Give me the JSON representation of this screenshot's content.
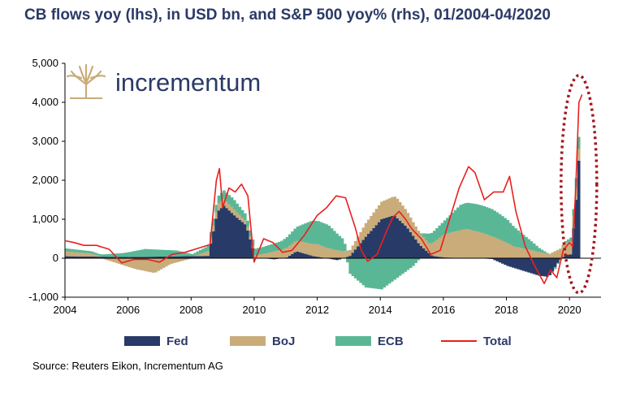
{
  "colors": {
    "fed": "#283a67",
    "boj": "#c9ac7a",
    "ecb": "#5ab796",
    "total": "#e8201f",
    "highlight": "#a3141e",
    "axis": "#000000",
    "title": "#2b3a67"
  },
  "logo": {
    "icon": "tree-logo-icon",
    "text": "incrementum"
  },
  "source": "Source: Reuters Eikon, Incrementum AG",
  "chart_data": {
    "type": "area",
    "title": "CB flows yoy (lhs), in USD bn, and S&P 500 yoy% (rhs), 01/2004-04/2020",
    "xlabel": "",
    "ylabel": "",
    "xlim": [
      2004,
      2021
    ],
    "ylim": [
      -1000,
      5000
    ],
    "x_ticks": [
      "2004",
      "2006",
      "2008",
      "2010",
      "2012",
      "2014",
      "2016",
      "2018",
      "2020"
    ],
    "y_ticks": [
      "-1,000",
      "0",
      "1,000",
      "2,000",
      "3,000",
      "4,000",
      "5,000"
    ],
    "grid": false,
    "legend": "bottom",
    "series": [
      {
        "name": "Fed",
        "points": [
          [
            2004,
            50
          ],
          [
            2006,
            30
          ],
          [
            2008.5,
            60
          ],
          [
            2008.8,
            1200
          ],
          [
            2009.0,
            1350
          ],
          [
            2009.4,
            1050
          ],
          [
            2009.7,
            850
          ],
          [
            2010,
            20
          ],
          [
            2010.6,
            -30
          ],
          [
            2011,
            20
          ],
          [
            2011.3,
            180
          ],
          [
            2011.8,
            60
          ],
          [
            2012.6,
            -50
          ],
          [
            2013,
            60
          ],
          [
            2013.5,
            550
          ],
          [
            2014.0,
            1000
          ],
          [
            2014.4,
            1100
          ],
          [
            2014.8,
            800
          ],
          [
            2015.2,
            350
          ],
          [
            2015.6,
            60
          ],
          [
            2016,
            20
          ],
          [
            2017,
            0
          ],
          [
            2017.5,
            -20
          ],
          [
            2018.0,
            -200
          ],
          [
            2018.6,
            -350
          ],
          [
            2019.0,
            -450
          ],
          [
            2019.3,
            -480
          ],
          [
            2019.6,
            -100
          ],
          [
            2019.8,
            80
          ],
          [
            2020.0,
            100
          ],
          [
            2020.15,
            1300
          ],
          [
            2020.25,
            2500
          ],
          [
            2020.3,
            2750
          ]
        ]
      },
      {
        "name": "BoJ",
        "points": [
          [
            2004,
            120
          ],
          [
            2004.8,
            80
          ],
          [
            2005.5,
            -100
          ],
          [
            2006.2,
            -280
          ],
          [
            2006.8,
            -380
          ],
          [
            2007.3,
            -150
          ],
          [
            2008,
            0
          ],
          [
            2008.8,
            180
          ],
          [
            2009.3,
            150
          ],
          [
            2010,
            60
          ],
          [
            2011,
            250
          ],
          [
            2012,
            320
          ],
          [
            2012.6,
            200
          ],
          [
            2013,
            150
          ],
          [
            2013.5,
            350
          ],
          [
            2014,
            450
          ],
          [
            2014.5,
            500
          ],
          [
            2015,
            350
          ],
          [
            2015.5,
            250
          ],
          [
            2016,
            600
          ],
          [
            2016.7,
            750
          ],
          [
            2017.2,
            650
          ],
          [
            2017.7,
            500
          ],
          [
            2018.2,
            300
          ],
          [
            2018.8,
            200
          ],
          [
            2019.3,
            100
          ],
          [
            2019.8,
            300
          ],
          [
            2020.0,
            330
          ],
          [
            2020.3,
            300
          ]
        ]
      },
      {
        "name": "ECB",
        "points": [
          [
            2004,
            80
          ],
          [
            2005,
            50
          ],
          [
            2005.8,
            100
          ],
          [
            2006.5,
            200
          ],
          [
            2007.5,
            150
          ],
          [
            2008,
            50
          ],
          [
            2008.8,
            200
          ],
          [
            2009.3,
            250
          ],
          [
            2009.8,
            150
          ],
          [
            2010.2,
            180
          ],
          [
            2010.8,
            220
          ],
          [
            2011.3,
            350
          ],
          [
            2011.8,
            600
          ],
          [
            2012.3,
            600
          ],
          [
            2012.8,
            300
          ],
          [
            2013,
            -400
          ],
          [
            2013.5,
            -750
          ],
          [
            2014,
            -800
          ],
          [
            2014.5,
            -500
          ],
          [
            2015,
            -200
          ],
          [
            2015.5,
            250
          ],
          [
            2016,
            350
          ],
          [
            2016.5,
            650
          ],
          [
            2017,
            700
          ],
          [
            2017.5,
            700
          ],
          [
            2018,
            600
          ],
          [
            2018.5,
            350
          ],
          [
            2019,
            100
          ],
          [
            2019.5,
            -50
          ],
          [
            2020.0,
            100
          ],
          [
            2020.3,
            350
          ]
        ]
      },
      {
        "name": "Total",
        "points": [
          [
            2004,
            450
          ],
          [
            2004.3,
            400
          ],
          [
            2004.6,
            330
          ],
          [
            2005,
            330
          ],
          [
            2005.4,
            230
          ],
          [
            2005.8,
            -120
          ],
          [
            2006.2,
            -30
          ],
          [
            2006.6,
            -30
          ],
          [
            2007.0,
            -100
          ],
          [
            2007.4,
            100
          ],
          [
            2007.8,
            150
          ],
          [
            2008.2,
            250
          ],
          [
            2008.6,
            350
          ],
          [
            2008.8,
            2000
          ],
          [
            2008.9,
            2300
          ],
          [
            2009.0,
            1300
          ],
          [
            2009.2,
            1800
          ],
          [
            2009.4,
            1700
          ],
          [
            2009.6,
            1900
          ],
          [
            2009.8,
            1600
          ],
          [
            2010.0,
            -100
          ],
          [
            2010.3,
            500
          ],
          [
            2010.6,
            400
          ],
          [
            2010.9,
            150
          ],
          [
            2011.2,
            200
          ],
          [
            2011.6,
            600
          ],
          [
            2012.0,
            1100
          ],
          [
            2012.3,
            1300
          ],
          [
            2012.6,
            1600
          ],
          [
            2012.9,
            1550
          ],
          [
            2013.2,
            800
          ],
          [
            2013.4,
            200
          ],
          [
            2013.6,
            -80
          ],
          [
            2013.9,
            100
          ],
          [
            2014.2,
            700
          ],
          [
            2014.4,
            1050
          ],
          [
            2014.6,
            1200
          ],
          [
            2014.8,
            1000
          ],
          [
            2015.0,
            750
          ],
          [
            2015.3,
            500
          ],
          [
            2015.6,
            100
          ],
          [
            2015.9,
            200
          ],
          [
            2016.2,
            1000
          ],
          [
            2016.5,
            1800
          ],
          [
            2016.8,
            2350
          ],
          [
            2017.0,
            2200
          ],
          [
            2017.3,
            1500
          ],
          [
            2017.6,
            1700
          ],
          [
            2017.9,
            1700
          ],
          [
            2018.1,
            2100
          ],
          [
            2018.3,
            1200
          ],
          [
            2018.6,
            300
          ],
          [
            2018.9,
            -200
          ],
          [
            2019.2,
            -650
          ],
          [
            2019.4,
            -300
          ],
          [
            2019.6,
            -500
          ],
          [
            2019.8,
            200
          ],
          [
            2020.0,
            400
          ],
          [
            2020.1,
            300
          ],
          [
            2020.2,
            1800
          ],
          [
            2020.3,
            4000
          ],
          [
            2020.4,
            4200
          ]
        ]
      }
    ]
  }
}
